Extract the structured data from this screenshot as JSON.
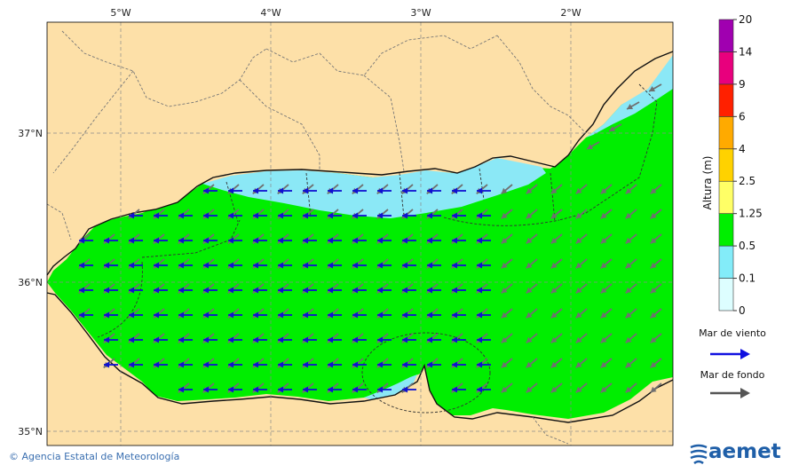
{
  "map": {
    "lon_labels": [
      "5°W",
      "4°W",
      "3°W",
      "2°W"
    ],
    "lat_labels": [
      "37°N",
      "36°N",
      "35°N"
    ],
    "colors": {
      "land": "#fde0a8",
      "sea_green": "#00ee00",
      "sea_cyan": "#8be8f6",
      "sea_lightcyan": "#d6fbfe",
      "wind_arrow": "#1010d0",
      "swell_arrow": "#707070",
      "coast": "#111111",
      "border": "#777777"
    }
  },
  "legend": {
    "title": "Altura (m)",
    "ticks": [
      "0",
      "0.1",
      "0.5",
      "1.25",
      "2.5",
      "4",
      "6",
      "9",
      "14",
      "20"
    ],
    "bands": [
      "#ddfeff",
      "#83ecf9",
      "#00ef00",
      "#ffff66",
      "#ffd200",
      "#ffaa00",
      "#ff2000",
      "#e8007d",
      "#a000b0"
    ],
    "wind_label": "Mar de viento",
    "swell_label": "Mar de fondo"
  },
  "footer": {
    "credit": "© Agencia Estatal de Meteorología",
    "logo": "aemet"
  }
}
